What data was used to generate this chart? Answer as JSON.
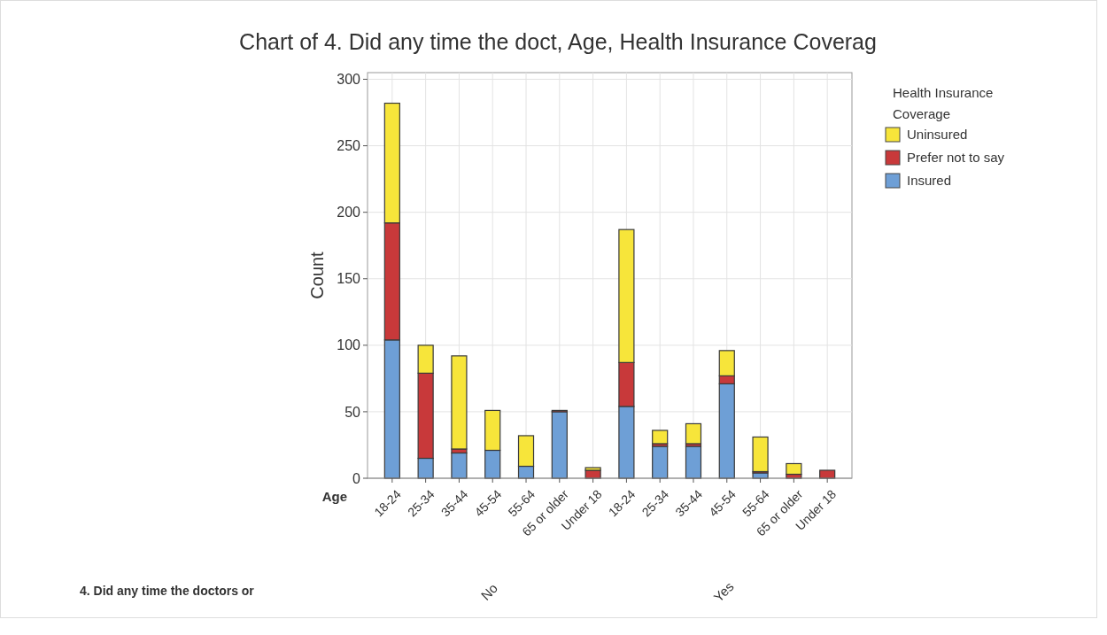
{
  "chart_data": {
    "type": "bar",
    "title": "Chart of 4. Did any time the doct, Age, Health Insurance Coverag",
    "xlabel": "Age",
    "ylabel": "Count",
    "legend_title": "Health Insurance Coverage",
    "annotations": [
      "4. Did any time the doctors or",
      "No",
      "Yes"
    ],
    "categories": [
      "18-24",
      "25-34",
      "35-44",
      "45-54",
      "55-64",
      "65 or older",
      "Under 18",
      "18-24",
      "25-34",
      "35-44",
      "45-54",
      "55-64",
      "65 or older",
      "Under 18"
    ],
    "series": [
      {
        "name": "Insured",
        "color": "#6e9fd6",
        "values": [
          104,
          15,
          19,
          21,
          9,
          50,
          0,
          54,
          24,
          24,
          71,
          4,
          0,
          0
        ]
      },
      {
        "name": "Prefer not to say",
        "color": "#c8393a",
        "values": [
          88,
          64,
          3,
          null,
          null,
          1,
          6,
          33,
          2,
          2,
          6,
          1,
          3,
          6
        ]
      },
      {
        "name": "Uninsured",
        "color": "#f7e53a",
        "values": [
          90,
          21,
          70,
          30,
          23,
          0,
          2,
          100,
          10,
          15,
          19,
          26,
          8,
          0
        ]
      }
    ],
    "stacked": true,
    "ylim": [
      0,
      305
    ],
    "yticks": [
      0,
      50,
      100,
      150,
      200,
      250,
      300
    ],
    "grid": true,
    "legend": "top right"
  }
}
